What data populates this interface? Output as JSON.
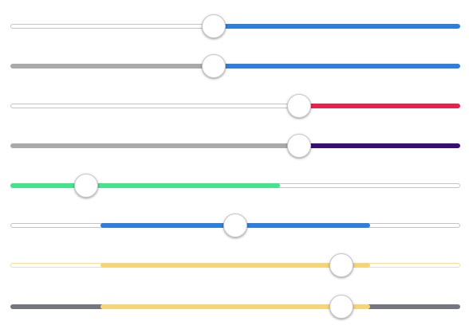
{
  "colors": {
    "blue": "#2d7fdb",
    "light_track_border": "#c4c4c4",
    "light_track_fill": "#ffffff",
    "gray": "#aaaaaa",
    "red": "#e3254c",
    "indigo": "#3a0d73",
    "green": "#40e58c",
    "gold": "#f6d47a",
    "gold_track_border": "#f4df9c",
    "dark_gray": "#757780",
    "thumb": "#ffffff"
  },
  "sliders": [
    {
      "kind": "single",
      "value": 0.452,
      "before": {
        "fill": "#ffffff",
        "border": "#c4c4c4"
      },
      "after": {
        "fill": "#2d7fdb",
        "border": "#2d7fdb"
      }
    },
    {
      "kind": "single",
      "value": 0.452,
      "before": {
        "fill": "#aaaaaa",
        "border": "#aaaaaa"
      },
      "after": {
        "fill": "#2d7fdb",
        "border": "#2d7fdb"
      }
    },
    {
      "kind": "single",
      "value": 0.641,
      "before": {
        "fill": "#ffffff",
        "border": "#c4c4c4"
      },
      "after": {
        "fill": "#e3254c",
        "border": "#e3254c"
      }
    },
    {
      "kind": "single",
      "value": 0.641,
      "before": {
        "fill": "#aaaaaa",
        "border": "#aaaaaa"
      },
      "after": {
        "fill": "#3a0d73",
        "border": "#3a0d73"
      }
    },
    {
      "kind": "single-with-buffer",
      "value": 0.168,
      "buffer": 0.6,
      "played": {
        "fill": "#40e58c",
        "border": "#40e58c"
      },
      "rest": {
        "fill": "#ffffff",
        "border": "#c4c4c4"
      }
    },
    {
      "kind": "range",
      "low": 0.2,
      "high": 0.8,
      "value": 0.5,
      "outside": {
        "fill": "#ffffff",
        "border": "#c4c4c4"
      },
      "inside": {
        "fill": "#2d7fdb",
        "border": "#2d7fdb"
      }
    },
    {
      "kind": "range",
      "low": 0.2,
      "high": 0.8,
      "value": 0.736,
      "outside": {
        "fill": "#ffffff",
        "border": "#f4df9c"
      },
      "inside": {
        "fill": "#f6d47a",
        "border": "#f6d47a"
      }
    },
    {
      "kind": "range",
      "low": 0.2,
      "high": 0.8,
      "value": 0.736,
      "outside": {
        "fill": "#757780",
        "border": "#757780"
      },
      "inside": {
        "fill": "#f6d47a",
        "border": "#f6d47a"
      }
    }
  ]
}
